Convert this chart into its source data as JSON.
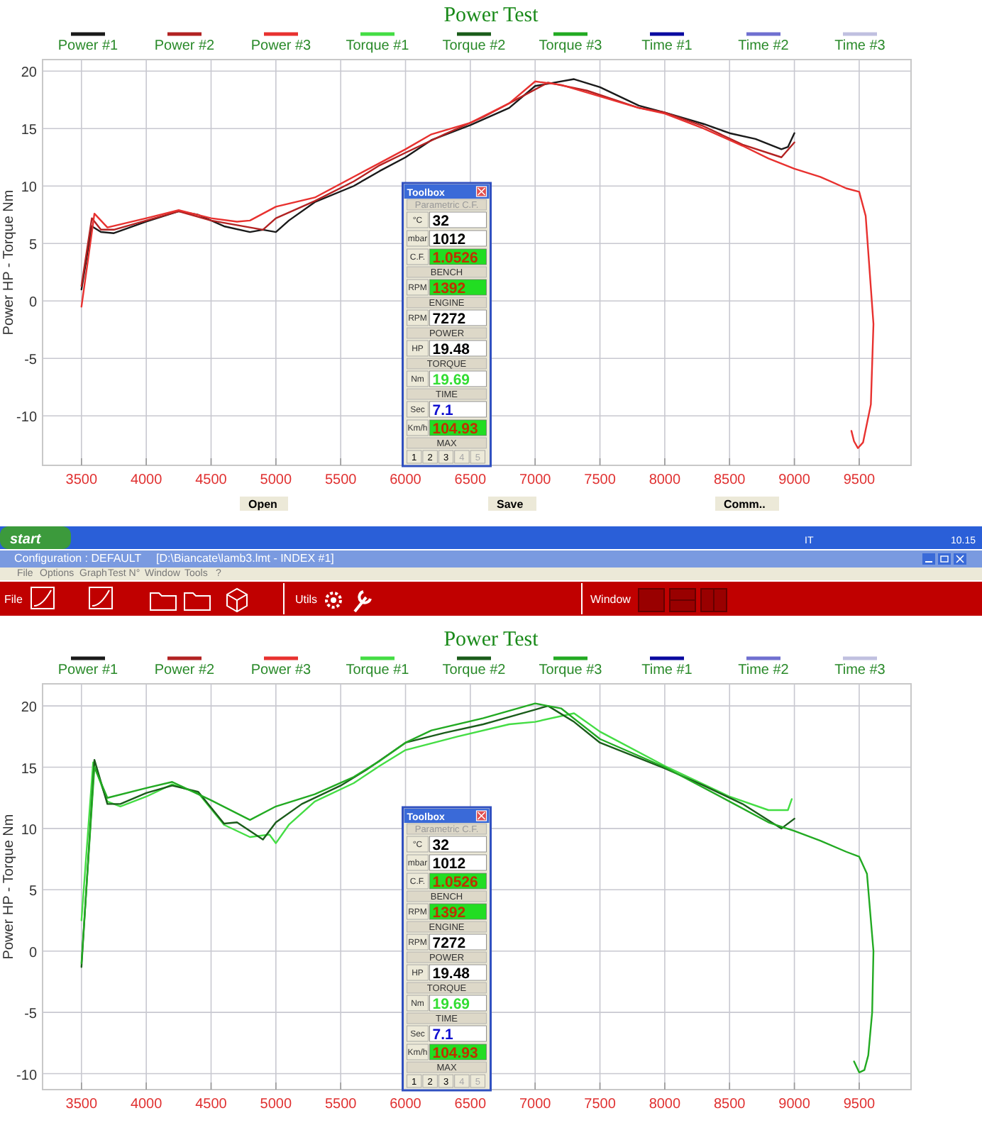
{
  "chart_data": [
    {
      "type": "line",
      "title": "Power Test",
      "ylabel": "Power HP - Torque Nm",
      "xlim": [
        3200,
        9900
      ],
      "ylim": [
        -14.3,
        21
      ],
      "xticks": [
        3500,
        4000,
        4500,
        5000,
        5500,
        6000,
        6500,
        7000,
        7500,
        8000,
        8500,
        9000,
        9500
      ],
      "yticks": [
        -10,
        -5,
        0,
        5,
        10,
        15,
        20
      ],
      "grid": true,
      "legend": "top",
      "line_style": "solid",
      "series": [
        {
          "name": "Power #1",
          "color": "#1a1a1a",
          "x": [
            3500,
            3580,
            3650,
            3750,
            4000,
            4250,
            4400,
            4600,
            4800,
            4900,
            5000,
            5100,
            5300,
            5600,
            5800,
            6000,
            6200,
            6500,
            6800,
            7000,
            7300,
            7500,
            7800,
            8000,
            8300,
            8500,
            8700,
            8900,
            8950,
            9000
          ],
          "values": [
            1.0,
            6.5,
            6.0,
            5.9,
            6.9,
            7.8,
            7.5,
            6.5,
            6.0,
            6.2,
            6.0,
            7.0,
            8.6,
            10.0,
            11.3,
            12.5,
            14.0,
            15.3,
            16.8,
            18.7,
            19.3,
            18.6,
            17.0,
            16.4,
            15.4,
            14.6,
            14.1,
            13.2,
            13.4,
            14.6
          ]
        },
        {
          "name": "Power #2",
          "color": "#b22222",
          "x": [
            3500,
            3580,
            3650,
            3750,
            4000,
            4250,
            4500,
            4700,
            4900,
            5000,
            5300,
            5600,
            5800,
            6000,
            6300,
            6600,
            6900,
            7100,
            7400,
            7800,
            8000,
            8300,
            8600,
            8900,
            9000
          ],
          "values": [
            1.3,
            7.2,
            6.2,
            6.2,
            7.0,
            7.8,
            7.0,
            6.6,
            6.2,
            7.2,
            8.7,
            10.4,
            11.8,
            12.9,
            14.5,
            16.0,
            17.8,
            19.0,
            18.3,
            16.8,
            16.4,
            15.2,
            13.6,
            12.5,
            13.8
          ]
        },
        {
          "name": "Power #3",
          "color": "#e8312f",
          "x": [
            3500,
            3600,
            3700,
            4000,
            4250,
            4500,
            4700,
            4800,
            5000,
            5300,
            5600,
            5800,
            6000,
            6200,
            6500,
            6800,
            7000,
            7200,
            7500,
            7800,
            8000,
            8300,
            8600,
            8800,
            9000,
            9200,
            9400,
            9500,
            9550,
            9610,
            9590,
            9530,
            9490,
            9460,
            9440
          ],
          "values": [
            -0.5,
            7.6,
            6.4,
            7.2,
            7.9,
            7.2,
            6.9,
            7.0,
            8.2,
            9.0,
            10.8,
            12.0,
            13.2,
            14.5,
            15.5,
            17.2,
            19.1,
            18.8,
            17.8,
            16.8,
            16.3,
            15.0,
            13.5,
            12.4,
            11.5,
            10.8,
            9.8,
            9.5,
            7.4,
            -2,
            -9,
            -12.3,
            -12.8,
            -12.2,
            -11.3
          ]
        },
        {
          "name": "Torque #1",
          "color": "#44dd44"
        },
        {
          "name": "Torque #2",
          "color": "#1a5c1a"
        },
        {
          "name": "Torque #3",
          "color": "#22aa22"
        },
        {
          "name": "Time #1",
          "color": "#0a0aa0"
        },
        {
          "name": "Time #2",
          "color": "#7070d0"
        },
        {
          "name": "Time #3",
          "color": "#c0c0e0"
        }
      ],
      "annotations": [
        "Toolbox",
        "Parametric C.F.",
        "°C",
        "32",
        "mbar",
        "1012",
        "C.F.",
        "1.0526",
        "BENCH",
        "RPM",
        "1392",
        "ENGINE",
        "RPM",
        "7272",
        "POWER",
        "HP",
        "19.48",
        "TORQUE",
        "Nm",
        "19.69",
        "TIME",
        "Sec",
        "7.1",
        "Km/h",
        "104.93",
        "MAX",
        "1",
        "2",
        "3",
        "4",
        "5"
      ]
    },
    {
      "type": "other",
      "annotations": [
        "Open",
        "Save",
        "Comm..",
        "start",
        "IT",
        "10.15",
        "Configuration : DEFAULT",
        "[D:\\Biancate\\lamb3.lmt - INDEX #1]",
        "File",
        "Options",
        "Graph",
        "Test N°",
        "Window",
        "Tools",
        "?",
        "File",
        "Utils",
        "Window"
      ]
    },
    {
      "type": "line",
      "title": "Power Test",
      "ylabel": "Power HP - Torque Nm",
      "xlim": [
        3200,
        9900
      ],
      "ylim": [
        -11.3,
        21.8
      ],
      "xticks": [
        3500,
        4000,
        4500,
        5000,
        5500,
        6000,
        6500,
        7000,
        7500,
        8000,
        8500,
        9000,
        9500
      ],
      "yticks": [
        -10,
        -5,
        0,
        5,
        10,
        15,
        20
      ],
      "grid": true,
      "legend": "top",
      "line_style": "solid",
      "series": [
        {
          "name": "Power #1",
          "color": "#1a1a1a"
        },
        {
          "name": "Power #2",
          "color": "#b22222"
        },
        {
          "name": "Power #3",
          "color": "#e8312f"
        },
        {
          "name": "Torque #1",
          "color": "#44dd44",
          "x": [
            3500,
            3590,
            3700,
            3800,
            4000,
            4200,
            4400,
            4600,
            4800,
            4950,
            5000,
            5100,
            5300,
            5600,
            5800,
            6000,
            6400,
            6800,
            7000,
            7300,
            7500,
            8000,
            8500,
            8800,
            8950,
            8980
          ],
          "values": [
            2.5,
            15.4,
            12.2,
            11.8,
            12.6,
            13.6,
            12.9,
            10.3,
            9.3,
            9.5,
            8.8,
            10.3,
            12.2,
            13.7,
            15.1,
            16.4,
            17.5,
            18.5,
            18.7,
            19.4,
            17.9,
            15.1,
            12.6,
            11.5,
            11.5,
            12.4
          ]
        },
        {
          "name": "Torque #2",
          "color": "#1a5c1a",
          "x": [
            3500,
            3600,
            3700,
            3800,
            4000,
            4200,
            4400,
            4600,
            4700,
            4900,
            5000,
            5200,
            5500,
            5700,
            6000,
            6300,
            6600,
            7000,
            7100,
            7300,
            7500,
            8000,
            8300,
            8600,
            8900,
            9000
          ],
          "values": [
            -1.3,
            15.6,
            12.0,
            12.0,
            12.9,
            13.5,
            13.0,
            10.4,
            10.5,
            9.1,
            10.5,
            12.0,
            13.5,
            14.8,
            17.0,
            17.8,
            18.5,
            19.7,
            20.0,
            18.7,
            17.0,
            14.9,
            13.5,
            12.0,
            10.0,
            10.8
          ]
        },
        {
          "name": "Torque #3",
          "color": "#22aa22",
          "x": [
            3500,
            3600,
            3700,
            4000,
            4200,
            4500,
            4800,
            5000,
            5300,
            5600,
            5800,
            6000,
            6200,
            6600,
            7000,
            7200,
            7500,
            8000,
            8500,
            8800,
            9000,
            9200,
            9400,
            9500,
            9560,
            9610,
            9600,
            9570,
            9540,
            9500,
            9460
          ],
          "values": [
            -1,
            15.0,
            12.5,
            13.3,
            13.8,
            12.3,
            10.7,
            11.8,
            12.8,
            14.2,
            15.5,
            17.0,
            18.0,
            19.0,
            20.2,
            19.8,
            17.3,
            15.0,
            12.2,
            10.5,
            9.8,
            9.0,
            8.1,
            7.7,
            6.3,
            0,
            -5,
            -8.5,
            -9.7,
            -9.9,
            -9.0
          ]
        },
        {
          "name": "Time #1",
          "color": "#0a0aa0"
        },
        {
          "name": "Time #2",
          "color": "#7070d0"
        },
        {
          "name": "Time #3",
          "color": "#c0c0e0"
        }
      ],
      "annotations": [
        "Toolbox",
        "Parametric C.F.",
        "°C",
        "32",
        "mbar",
        "1012",
        "C.F.",
        "1.0526",
        "BENCH",
        "RPM",
        "1392",
        "ENGINE",
        "RPM",
        "7272",
        "POWER",
        "HP",
        "19.48",
        "TORQUE",
        "Nm",
        "19.69",
        "TIME",
        "Sec",
        "7.1",
        "Km/h",
        "104.93",
        "MAX",
        "1",
        "2",
        "3",
        "4",
        "5"
      ]
    }
  ]
}
